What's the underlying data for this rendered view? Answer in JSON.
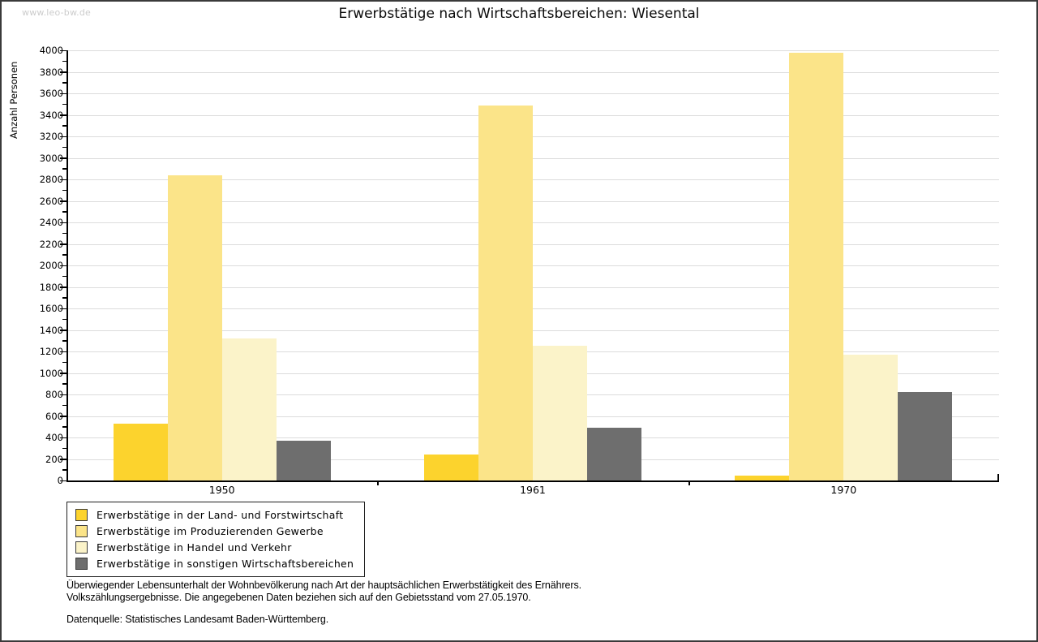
{
  "page": {
    "watermark": "www.leo-bw.de"
  },
  "chart_data": {
    "type": "bar",
    "title": "Erwerbstätige nach Wirtschaftsbereichen: Wiesental",
    "xlabel": "",
    "ylabel": "Anzahl Personen",
    "categories": [
      "1950",
      "1961",
      "1970"
    ],
    "series": [
      {
        "name": "Erwerbstätige in der Land- und Forstwirtschaft",
        "color": "#fcd32d",
        "values": [
          530,
          240,
          45
        ]
      },
      {
        "name": "Erwerbstätige im Produzierenden Gewerbe",
        "color": "#fbe489",
        "values": [
          2840,
          3490,
          3980
        ]
      },
      {
        "name": "Erwerbstätige in Handel und Verkehr",
        "color": "#fbf3c9",
        "values": [
          1320,
          1250,
          1170
        ]
      },
      {
        "name": "Erwerbstätige in sonstigen Wirtschaftsbereichen",
        "color": "#6e6e6e",
        "values": [
          370,
          490,
          820
        ]
      }
    ],
    "ylim": [
      0,
      4000
    ],
    "ytick_step": 200,
    "yminor_step": 100,
    "grid": true,
    "legend_position": "bottom-left",
    "colors": {
      "axis": "#000000",
      "gridline": "#dcdcdc",
      "background": "#ffffff"
    }
  },
  "footnotes": {
    "line1": "Überwiegender Lebensunterhalt der Wohnbevölkerung nach Art der hauptsächlichen Erwerbstätigkeit des Ernährers.",
    "line2": "Volkszählungsergebnisse. Die angegebenen Daten beziehen sich auf den Gebietsstand vom 27.05.1970.",
    "source": "Datenquelle: Statistisches Landesamt Baden-Württemberg."
  }
}
